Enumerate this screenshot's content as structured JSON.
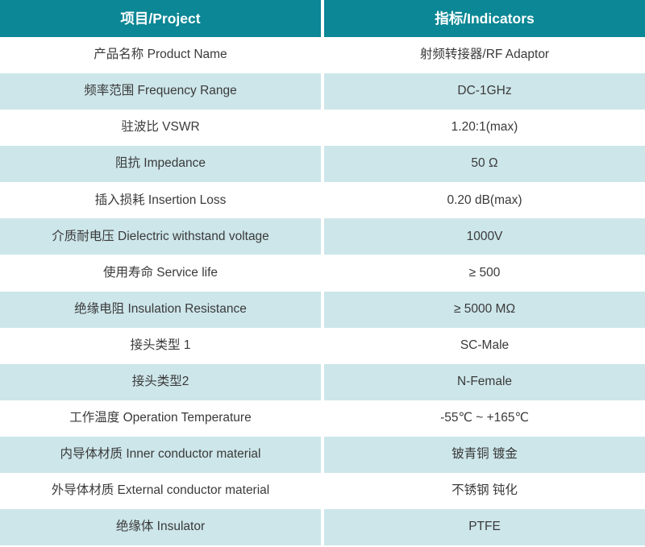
{
  "colors": {
    "header_bg": "#0b8795",
    "header_text": "#ffffff",
    "row_bg": "#ffffff",
    "row_alt_bg": "#cde6ea",
    "body_text": "#3a3a3a",
    "divider": "#ffffff"
  },
  "table": {
    "header": {
      "project": "项目/Project",
      "indicators": "指标/Indicators"
    },
    "rows": [
      {
        "label": "产品名称 Product Name",
        "value": "射频转接器/RF Adaptor"
      },
      {
        "label": "频率范围 Frequency Range",
        "value": "DC-1GHz"
      },
      {
        "label": "驻波比 VSWR",
        "value": "1.20:1(max)"
      },
      {
        "label": "阻抗 Impedance",
        "value": "50 Ω"
      },
      {
        "label": "插入损耗 Insertion Loss",
        "value": "0.20 dB(max)"
      },
      {
        "label": "介质耐电压 Dielectric withstand voltage",
        "value": "1000V"
      },
      {
        "label": "使用寿命 Service life",
        "value": "≥ 500"
      },
      {
        "label": "绝缘电阻 Insulation Resistance",
        "value": "≥ 5000 MΩ"
      },
      {
        "label": "接头类型 1",
        "value": "SC-Male"
      },
      {
        "label": "接头类型2",
        "value": "N-Female"
      },
      {
        "label": "工作温度 Operation Temperature",
        "value": "-55℃ ~ +165℃"
      },
      {
        "label": "内导体材质 Inner conductor material",
        "value": "铍青铜 镀金"
      },
      {
        "label": "外导体材质 External conductor material",
        "value": "不锈钢 钝化"
      },
      {
        "label": "绝缘体 Insulator",
        "value": "PTFE"
      }
    ]
  }
}
